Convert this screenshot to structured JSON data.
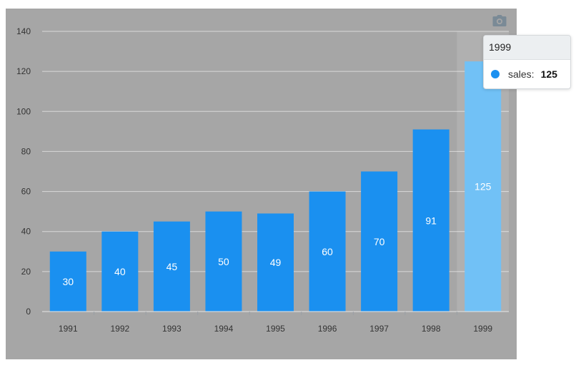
{
  "chart_data": {
    "type": "bar",
    "categories": [
      "1991",
      "1992",
      "1993",
      "1994",
      "1995",
      "1996",
      "1997",
      "1998",
      "1999"
    ],
    "series": [
      {
        "name": "sales",
        "values": [
          30,
          40,
          45,
          50,
          49,
          60,
          70,
          91,
          125
        ]
      }
    ],
    "ylim": [
      0,
      140
    ],
    "yticks": [
      "0",
      "20",
      "40",
      "60",
      "80",
      "100",
      "120",
      "140"
    ],
    "grid": true,
    "highlighted_category": "1999",
    "colors": {
      "bar": "#1a90f0",
      "bar_highlight": "#71c1f6",
      "background": "#a6a6a6",
      "grid": "#d9d9d9"
    }
  },
  "toolbar": {
    "camera_icon": "camera-icon"
  },
  "tooltip": {
    "title": "1999",
    "series_name": "sales:",
    "value": "125",
    "marker_color": "#1a90f0"
  }
}
